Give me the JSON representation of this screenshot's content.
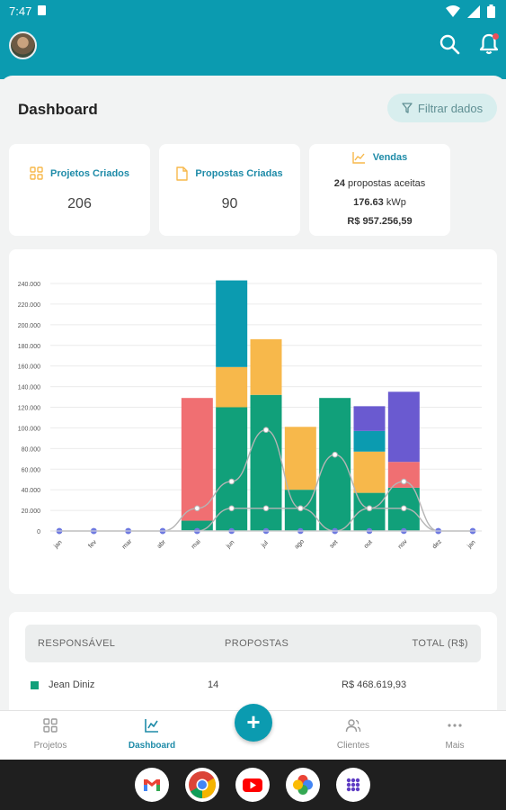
{
  "status_bar": {
    "time": "7:47",
    "icons": [
      "sim-icon",
      "wifi-icon",
      "signal-icon",
      "battery-icon"
    ]
  },
  "app_bar": {
    "avatar": "user-avatar",
    "actions": [
      "search-icon",
      "bell-icon"
    ]
  },
  "page": {
    "title": "Dashboard",
    "filter_label": "Filtrar dados"
  },
  "stats": {
    "projects": {
      "label": "Projetos Criados",
      "value": "206"
    },
    "proposals": {
      "label": "Propostas Criadas",
      "value": "90"
    },
    "sales": {
      "label": "Vendas",
      "accepted_count": "24",
      "accepted_text": "propostas aceitas",
      "power_value": "176.63",
      "power_unit": "kWp",
      "total": "R$ 957.256,59"
    }
  },
  "colors": {
    "primary": "#0b9bb0",
    "accent_orange": "#f7b84b",
    "green": "#11a07a"
  },
  "chart_data": {
    "type": "bar",
    "stacked": true,
    "categories": [
      "jan",
      "fev",
      "mar",
      "abr",
      "mai",
      "jun",
      "jul",
      "ago",
      "set",
      "out",
      "nov",
      "dez",
      "jan"
    ],
    "ylim": [
      0,
      240000
    ],
    "y_ticks": [
      "0",
      "20.000",
      "40.000",
      "60.000",
      "80.000",
      "100.000",
      "120.000",
      "140.000",
      "160.000",
      "180.000",
      "200.000",
      "220.000",
      "240.000"
    ],
    "grid": true,
    "series": [
      {
        "color": "#11a07a",
        "values": [
          0,
          0,
          0,
          0,
          10000,
          120000,
          132000,
          40000,
          129000,
          37000,
          42000,
          0,
          0
        ]
      },
      {
        "color": "#f7b84b",
        "values": [
          0,
          0,
          0,
          0,
          0,
          39000,
          54000,
          61000,
          0,
          40000,
          0,
          0,
          0
        ]
      },
      {
        "color": "#0b9bb0",
        "values": [
          0,
          0,
          0,
          0,
          0,
          84000,
          0,
          0,
          0,
          20000,
          0,
          0,
          0
        ]
      },
      {
        "color": "#f06f72",
        "values": [
          0,
          0,
          0,
          0,
          119000,
          0,
          0,
          0,
          0,
          0,
          25000,
          0,
          0
        ]
      },
      {
        "color": "#6a5ad0",
        "values": [
          0,
          0,
          0,
          0,
          0,
          0,
          0,
          0,
          0,
          24000,
          68000,
          0,
          0
        ]
      }
    ],
    "lines": [
      {
        "color": "#b5b5b5",
        "values": [
          0,
          0,
          0,
          0,
          22000,
          48000,
          98000,
          22000,
          74000,
          22000,
          48000,
          0,
          0
        ]
      },
      {
        "color": "#b5b5b5",
        "values": [
          0,
          0,
          0,
          0,
          0,
          22000,
          22000,
          22000,
          0,
          22000,
          22000,
          0,
          0
        ]
      },
      {
        "color": "#b5b5b5",
        "values": [
          0,
          0,
          0,
          0,
          0,
          0,
          0,
          0,
          0,
          0,
          0,
          0,
          0
        ]
      }
    ]
  },
  "table": {
    "headers": {
      "responsible": "RESPONSÁVEL",
      "proposals": "PROPOSTAS",
      "total": "TOTAL (R$)"
    },
    "rows": [
      {
        "name": "Jean Diniz",
        "proposals": "14",
        "total": "R$ 468.619,93"
      }
    ]
  },
  "bottom_nav": {
    "items": [
      {
        "label": "Projetos"
      },
      {
        "label": "Dashboard"
      },
      {
        "label": "Clientes"
      },
      {
        "label": "Mais"
      }
    ],
    "fab_label": "+"
  },
  "dock": {
    "apps": [
      "gmail-icon",
      "chrome-icon",
      "youtube-icon",
      "photos-icon",
      "app-drawer-icon"
    ]
  }
}
